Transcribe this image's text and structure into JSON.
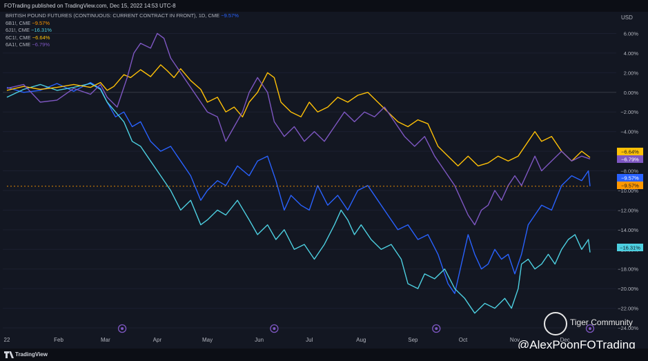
{
  "header": {
    "publisher_line": "FOTrading published on TradingView.com, Dec 15, 2022 14:53 UTC-8"
  },
  "footer": {
    "brand": "TradingView"
  },
  "watermark": {
    "community": "Tiger Community",
    "handle": "@AlexPoonFOTrading"
  },
  "legend": {
    "title": "BRITISH POUND FUTURES (CONTINUOUS: CURRENT CONTRACT IN FRONT), 1D, CME",
    "title_value": "−9.57%",
    "rows": [
      {
        "label": "6B1!, CME",
        "value": "−9.57%",
        "color": "#ff9800"
      },
      {
        "label": "6J1!, CME",
        "value": "−16.31%",
        "color": "#4dd0e1"
      },
      {
        "label": "6C1!, CME",
        "value": "−6.64%",
        "color": "#ffc107"
      },
      {
        "label": "6A1!, CME",
        "value": "−6.79%",
        "color": "#7e57c2"
      }
    ]
  },
  "chart_data": {
    "type": "line",
    "ylabel": "USD",
    "ylim": [
      -24,
      8
    ],
    "y_ticks": [
      6,
      4,
      2,
      0,
      -2,
      -4,
      -6,
      -8,
      -10,
      -12,
      -14,
      -16,
      -18,
      -20,
      -22,
      -24
    ],
    "y_tick_labels": [
      "6.00%",
      "4.00%",
      "2.00%",
      "0.00%",
      "−2.00%",
      "−4.00%",
      "−6.00%",
      "−8.00%",
      "−10.00%",
      "−12.00%",
      "−14.00%",
      "−16.00%",
      "−18.00%",
      "−20.00%",
      "−22.00%",
      "−24.00%"
    ],
    "x_range": [
      0,
      349
    ],
    "x_ticks": [
      {
        "label": "22",
        "x": 0
      },
      {
        "label": "Feb",
        "x": 31
      },
      {
        "label": "Mar",
        "x": 59
      },
      {
        "label": "Apr",
        "x": 90
      },
      {
        "label": "May",
        "x": 120
      },
      {
        "label": "Jun",
        "x": 151
      },
      {
        "label": "Jul",
        "x": 181
      },
      {
        "label": "Aug",
        "x": 212
      },
      {
        "label": "Sep",
        "x": 243
      },
      {
        "label": "Oct",
        "x": 273
      },
      {
        "label": "Nov",
        "x": 304
      },
      {
        "label": "Dec",
        "x": 334
      }
    ],
    "grid": "horizontal",
    "legend_position": "top-left",
    "event_marker_x": [
      69,
      160,
      257,
      349
    ],
    "price_labels": [
      {
        "text": "−6.64%",
        "value": -6.64,
        "color": "#ffc107"
      },
      {
        "text": "−6.79%",
        "value": -6.79,
        "color": "#7e57c2"
      },
      {
        "text": "−9.57%",
        "value": -9.57,
        "color": "#2962ff"
      },
      {
        "text": "−9.57%",
        "value": -9.57,
        "color": "#ff9800"
      },
      {
        "text": "−16.31%",
        "value": -16.31,
        "color": "#4dd0e1"
      }
    ],
    "series": [
      {
        "name": "6B1!, CME",
        "color": "#2962ff",
        "points": [
          [
            0,
            0.5
          ],
          [
            10,
            0
          ],
          [
            20,
            0.2
          ],
          [
            30,
            0.9
          ],
          [
            40,
            0.1
          ],
          [
            50,
            1
          ],
          [
            56,
            0.4
          ],
          [
            60,
            -1
          ],
          [
            65,
            -2.5
          ],
          [
            70,
            -2
          ],
          [
            75,
            -3.5
          ],
          [
            80,
            -3
          ],
          [
            86,
            -5
          ],
          [
            92,
            -6
          ],
          [
            98,
            -5.5
          ],
          [
            104,
            -7
          ],
          [
            110,
            -8.5
          ],
          [
            116,
            -11
          ],
          [
            120,
            -10
          ],
          [
            126,
            -9
          ],
          [
            131,
            -9.5
          ],
          [
            138,
            -7.5
          ],
          [
            145,
            -8.5
          ],
          [
            150,
            -7
          ],
          [
            156,
            -6.5
          ],
          [
            161,
            -9
          ],
          [
            166,
            -12
          ],
          [
            170,
            -10.5
          ],
          [
            176,
            -11.5
          ],
          [
            181,
            -12
          ],
          [
            186,
            -9.5
          ],
          [
            192,
            -11.5
          ],
          [
            198,
            -10.5
          ],
          [
            204,
            -12
          ],
          [
            210,
            -10
          ],
          [
            216,
            -9.5
          ],
          [
            222,
            -11
          ],
          [
            228,
            -12.5
          ],
          [
            234,
            -14
          ],
          [
            240,
            -13.5
          ],
          [
            246,
            -15
          ],
          [
            252,
            -14.5
          ],
          [
            258,
            -16.5
          ],
          [
            264,
            -19.5
          ],
          [
            268,
            -20.5
          ],
          [
            272,
            -17.5
          ],
          [
            276,
            -14.5
          ],
          [
            280,
            -16.5
          ],
          [
            284,
            -18
          ],
          [
            288,
            -17.5
          ],
          [
            292,
            -16
          ],
          [
            296,
            -17
          ],
          [
            300,
            -16.5
          ],
          [
            304,
            -18.5
          ],
          [
            308,
            -16.5
          ],
          [
            312,
            -13.5
          ],
          [
            316,
            -12.5
          ],
          [
            320,
            -11.5
          ],
          [
            326,
            -12
          ],
          [
            332,
            -9.5
          ],
          [
            338,
            -8.5
          ],
          [
            344,
            -9
          ],
          [
            348,
            -8
          ],
          [
            349,
            -9.57
          ]
        ]
      },
      {
        "name": "6J1!, CME",
        "color": "#4dd0e1",
        "points": [
          [
            0,
            -0.5
          ],
          [
            10,
            0.3
          ],
          [
            20,
            0.8
          ],
          [
            30,
            0.2
          ],
          [
            40,
            0.5
          ],
          [
            50,
            0.9
          ],
          [
            56,
            0.3
          ],
          [
            60,
            -1
          ],
          [
            65,
            -2
          ],
          [
            70,
            -3
          ],
          [
            75,
            -5
          ],
          [
            80,
            -5.5
          ],
          [
            86,
            -7
          ],
          [
            92,
            -8.5
          ],
          [
            98,
            -10
          ],
          [
            104,
            -12
          ],
          [
            110,
            -11
          ],
          [
            116,
            -13.5
          ],
          [
            120,
            -13
          ],
          [
            126,
            -12
          ],
          [
            131,
            -12.5
          ],
          [
            138,
            -11
          ],
          [
            145,
            -13
          ],
          [
            150,
            -14.5
          ],
          [
            156,
            -13.5
          ],
          [
            161,
            -15
          ],
          [
            166,
            -14
          ],
          [
            172,
            -16
          ],
          [
            178,
            -15.5
          ],
          [
            184,
            -17
          ],
          [
            190,
            -15.5
          ],
          [
            196,
            -13.5
          ],
          [
            200,
            -12
          ],
          [
            204,
            -13
          ],
          [
            208,
            -14.5
          ],
          [
            212,
            -13.5
          ],
          [
            218,
            -15
          ],
          [
            224,
            -16
          ],
          [
            230,
            -15.5
          ],
          [
            236,
            -17
          ],
          [
            240,
            -19.5
          ],
          [
            246,
            -20
          ],
          [
            250,
            -18.5
          ],
          [
            256,
            -19
          ],
          [
            262,
            -18
          ],
          [
            268,
            -20
          ],
          [
            274,
            -21
          ],
          [
            280,
            -22.5
          ],
          [
            286,
            -21.5
          ],
          [
            292,
            -22
          ],
          [
            298,
            -21
          ],
          [
            302,
            -22
          ],
          [
            306,
            -20
          ],
          [
            308,
            -17.5
          ],
          [
            312,
            -17
          ],
          [
            316,
            -18
          ],
          [
            320,
            -17.5
          ],
          [
            324,
            -16.5
          ],
          [
            328,
            -17.5
          ],
          [
            332,
            -16
          ],
          [
            336,
            -15
          ],
          [
            340,
            -14.5
          ],
          [
            344,
            -16
          ],
          [
            348,
            -15
          ],
          [
            349,
            -16.31
          ]
        ]
      },
      {
        "name": "6C1!, CME",
        "color": "#ffc107",
        "points": [
          [
            0,
            0.2
          ],
          [
            10,
            0.6
          ],
          [
            20,
            0.3
          ],
          [
            30,
            0.5
          ],
          [
            40,
            0.8
          ],
          [
            50,
            0.5
          ],
          [
            56,
            1
          ],
          [
            60,
            0.2
          ],
          [
            64,
            0.6
          ],
          [
            70,
            1.8
          ],
          [
            74,
            1.5
          ],
          [
            80,
            2.3
          ],
          [
            86,
            1.6
          ],
          [
            92,
            2.8
          ],
          [
            96,
            2.2
          ],
          [
            100,
            1.5
          ],
          [
            104,
            2.4
          ],
          [
            110,
            1.2
          ],
          [
            116,
            0.3
          ],
          [
            120,
            -1
          ],
          [
            126,
            -0.5
          ],
          [
            131,
            -2
          ],
          [
            136,
            -1.5
          ],
          [
            141,
            -2.5
          ],
          [
            145,
            -1
          ],
          [
            150,
            0
          ],
          [
            156,
            2
          ],
          [
            160,
            1.5
          ],
          [
            164,
            -1
          ],
          [
            170,
            -2
          ],
          [
            176,
            -2.5
          ],
          [
            181,
            -1
          ],
          [
            186,
            -2
          ],
          [
            192,
            -1.5
          ],
          [
            198,
            -0.5
          ],
          [
            204,
            -1
          ],
          [
            210,
            -0.3
          ],
          [
            216,
            0
          ],
          [
            222,
            -1
          ],
          [
            228,
            -2
          ],
          [
            234,
            -3
          ],
          [
            240,
            -3.5
          ],
          [
            246,
            -2.8
          ],
          [
            252,
            -3.2
          ],
          [
            258,
            -5.5
          ],
          [
            264,
            -6.5
          ],
          [
            270,
            -7.5
          ],
          [
            276,
            -6.5
          ],
          [
            282,
            -7.5
          ],
          [
            288,
            -7.2
          ],
          [
            294,
            -6.5
          ],
          [
            300,
            -7
          ],
          [
            306,
            -6.5
          ],
          [
            312,
            -5
          ],
          [
            316,
            -4
          ],
          [
            320,
            -5
          ],
          [
            326,
            -4.5
          ],
          [
            332,
            -6
          ],
          [
            338,
            -7
          ],
          [
            344,
            -6
          ],
          [
            349,
            -6.64
          ]
        ]
      },
      {
        "name": "6A1!, CME",
        "color": "#7e57c2",
        "points": [
          [
            0,
            0.4
          ],
          [
            10,
            0.8
          ],
          [
            20,
            -1
          ],
          [
            30,
            -0.8
          ],
          [
            40,
            0.4
          ],
          [
            50,
            -0.2
          ],
          [
            56,
            0.8
          ],
          [
            60,
            -0.5
          ],
          [
            66,
            -1.5
          ],
          [
            72,
            1.5
          ],
          [
            76,
            4
          ],
          [
            80,
            5
          ],
          [
            86,
            4.5
          ],
          [
            90,
            6
          ],
          [
            94,
            5.5
          ],
          [
            98,
            3.5
          ],
          [
            104,
            2
          ],
          [
            110,
            0.5
          ],
          [
            116,
            -1
          ],
          [
            120,
            -2
          ],
          [
            126,
            -2.5
          ],
          [
            131,
            -5
          ],
          [
            136,
            -3.5
          ],
          [
            141,
            -2
          ],
          [
            145,
            0
          ],
          [
            150,
            1.5
          ],
          [
            156,
            0
          ],
          [
            160,
            -3
          ],
          [
            166,
            -4.5
          ],
          [
            172,
            -3.5
          ],
          [
            178,
            -5
          ],
          [
            184,
            -4
          ],
          [
            190,
            -5
          ],
          [
            196,
            -3.5
          ],
          [
            202,
            -2
          ],
          [
            208,
            -3
          ],
          [
            214,
            -2
          ],
          [
            220,
            -2.5
          ],
          [
            226,
            -1.5
          ],
          [
            232,
            -3
          ],
          [
            238,
            -4.5
          ],
          [
            244,
            -5.5
          ],
          [
            250,
            -4.5
          ],
          [
            256,
            -6.5
          ],
          [
            262,
            -8
          ],
          [
            268,
            -9.5
          ],
          [
            272,
            -11
          ],
          [
            276,
            -12.5
          ],
          [
            280,
            -13.5
          ],
          [
            284,
            -12
          ],
          [
            288,
            -11.5
          ],
          [
            292,
            -10
          ],
          [
            296,
            -11
          ],
          [
            300,
            -9.5
          ],
          [
            304,
            -8.5
          ],
          [
            308,
            -9.5
          ],
          [
            312,
            -8
          ],
          [
            316,
            -6.5
          ],
          [
            320,
            -8
          ],
          [
            326,
            -7
          ],
          [
            332,
            -6
          ],
          [
            338,
            -7
          ],
          [
            344,
            -6.5
          ],
          [
            349,
            -6.79
          ]
        ]
      },
      {
        "name": "6B1!, CME",
        "color": "#ff9800",
        "points": [
          [
            0,
            -9.57
          ],
          [
            349,
            -9.57
          ]
        ]
      }
    ]
  }
}
